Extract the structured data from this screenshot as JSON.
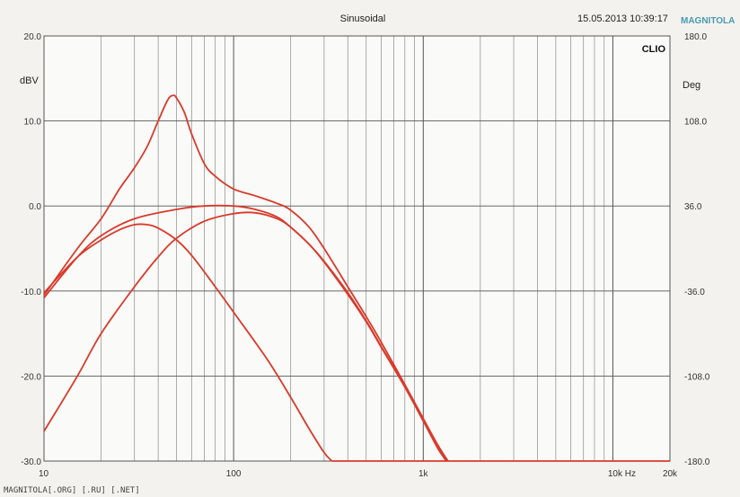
{
  "header": {
    "title": "Sinusoidal",
    "timestamp": "15.05.2013 10:39:17",
    "brand": "CLIO",
    "watermark": "MAGNITOLA"
  },
  "footer_text": "MAGNITOLA[.ORG] [.RU] [.NET]",
  "chart_data": {
    "type": "line",
    "title": "Sinusoidal",
    "x_scale": "log",
    "xlim": [
      10,
      20000
    ],
    "ylim": [
      -30,
      20
    ],
    "y2lim": [
      -180,
      180
    ],
    "ylabel": "dBV",
    "y2label": "Deg",
    "x_ticks": [
      {
        "value": 10,
        "label": "10"
      },
      {
        "value": 100,
        "label": "100"
      },
      {
        "value": 1000,
        "label": "1k"
      },
      {
        "value": 10000,
        "label": "10k Hz"
      },
      {
        "value": 20000,
        "label": "20k"
      }
    ],
    "y_ticks": [
      {
        "value": 20,
        "label": "20.0"
      },
      {
        "value": 10,
        "label": "10.0"
      },
      {
        "value": 0,
        "label": "0.0"
      },
      {
        "value": -10,
        "label": "-10.0"
      },
      {
        "value": -20,
        "label": "-20.0"
      },
      {
        "value": -30,
        "label": "-30.0"
      }
    ],
    "y2_ticks": [
      {
        "value": 180,
        "label": "180.0"
      },
      {
        "value": 108,
        "label": "108.0"
      },
      {
        "value": 36,
        "label": "36.0"
      },
      {
        "value": -36,
        "label": "-36.0"
      },
      {
        "value": -108,
        "label": "-108.0"
      },
      {
        "value": -180,
        "label": "-180.0"
      }
    ],
    "grid": true,
    "line_color": "#d93a2b",
    "series": [
      {
        "points": [
          [
            10,
            -10.5
          ],
          [
            15,
            -5
          ],
          [
            20,
            -1.5
          ],
          [
            25,
            2
          ],
          [
            30,
            4.5
          ],
          [
            35,
            7
          ],
          [
            40,
            10
          ],
          [
            45,
            12.5
          ],
          [
            48,
            13
          ],
          [
            50,
            12.7
          ],
          [
            55,
            11
          ],
          [
            60,
            8.5
          ],
          [
            70,
            5
          ],
          [
            80,
            3.5
          ],
          [
            100,
            2
          ],
          [
            130,
            1.2
          ],
          [
            170,
            0.3
          ],
          [
            200,
            -0.5
          ],
          [
            250,
            -2.5
          ],
          [
            300,
            -5
          ],
          [
            400,
            -9.5
          ],
          [
            500,
            -13
          ],
          [
            600,
            -16
          ],
          [
            800,
            -21
          ],
          [
            1000,
            -25
          ],
          [
            1200,
            -28.2
          ],
          [
            1350,
            -30
          ]
        ]
      },
      {
        "points": [
          [
            10,
            -10.8
          ],
          [
            15,
            -6
          ],
          [
            20,
            -3.5
          ],
          [
            30,
            -1.5
          ],
          [
            50,
            -0.4
          ],
          [
            70,
            0
          ],
          [
            100,
            0
          ],
          [
            130,
            -0.4
          ],
          [
            170,
            -1.3
          ],
          [
            200,
            -2.5
          ],
          [
            250,
            -4.5
          ],
          [
            300,
            -6.5
          ],
          [
            400,
            -10.2
          ],
          [
            500,
            -13.5
          ],
          [
            600,
            -16.5
          ],
          [
            800,
            -21.2
          ],
          [
            1000,
            -25.2
          ],
          [
            1200,
            -28.5
          ],
          [
            1320,
            -30
          ]
        ]
      },
      {
        "points": [
          [
            10,
            -10.2
          ],
          [
            15,
            -6
          ],
          [
            20,
            -4
          ],
          [
            25,
            -2.8
          ],
          [
            30,
            -2.2
          ],
          [
            35,
            -2.2
          ],
          [
            40,
            -2.6
          ],
          [
            50,
            -4
          ],
          [
            60,
            -5.8
          ],
          [
            80,
            -9.5
          ],
          [
            100,
            -12.5
          ],
          [
            150,
            -18
          ],
          [
            200,
            -22.5
          ],
          [
            250,
            -26.2
          ],
          [
            300,
            -29
          ],
          [
            330,
            -30
          ]
        ]
      },
      {
        "points": [
          [
            10,
            -26.5
          ],
          [
            15,
            -20
          ],
          [
            20,
            -15
          ],
          [
            30,
            -9.5
          ],
          [
            40,
            -6
          ],
          [
            50,
            -3.8
          ],
          [
            70,
            -1.8
          ],
          [
            100,
            -0.9
          ],
          [
            130,
            -0.8
          ],
          [
            170,
            -1.5
          ],
          [
            200,
            -2.5
          ],
          [
            250,
            -4.5
          ],
          [
            300,
            -6.6
          ],
          [
            400,
            -10.4
          ],
          [
            500,
            -13.6
          ],
          [
            600,
            -16.6
          ],
          [
            800,
            -21.3
          ],
          [
            1000,
            -25.3
          ],
          [
            1200,
            -28.6
          ],
          [
            1330,
            -30
          ]
        ]
      },
      {
        "points": [
          [
            330,
            -30
          ],
          [
            1000,
            -30
          ],
          [
            10000,
            -30
          ],
          [
            20000,
            -30
          ]
        ]
      }
    ]
  }
}
